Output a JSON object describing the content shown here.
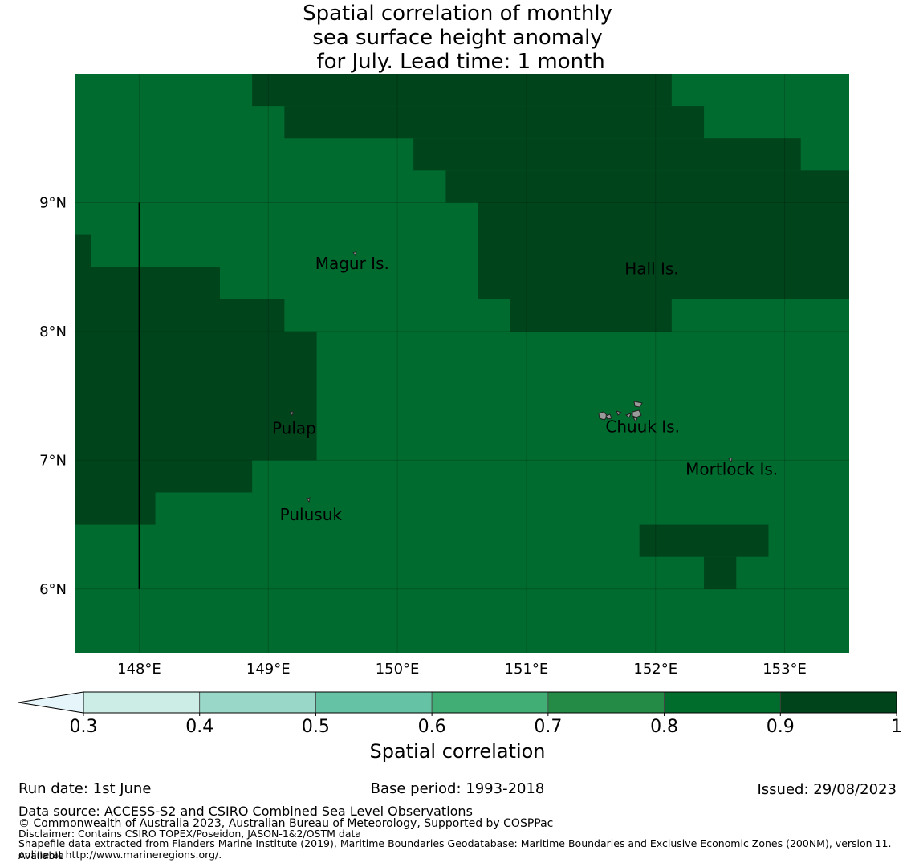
{
  "title_lines": [
    "Spatial correlation of monthly",
    "sea surface height anomaly",
    " for July. Lead time: 1 month"
  ],
  "map": {
    "lon_range": [
      147.5,
      153.5
    ],
    "lat_range": [
      5.5,
      10.0
    ],
    "x_ticks": [
      {
        "value": 148,
        "label": "148°E"
      },
      {
        "value": 149,
        "label": "149°E"
      },
      {
        "value": 150,
        "label": "150°E"
      },
      {
        "value": 151,
        "label": "151°E"
      },
      {
        "value": 152,
        "label": "152°E"
      },
      {
        "value": 153,
        "label": "153°E"
      }
    ],
    "y_ticks": [
      {
        "value": 9,
        "label": "9°N"
      },
      {
        "value": 8,
        "label": "8°N"
      },
      {
        "value": 7,
        "label": "7°N"
      },
      {
        "value": 6,
        "label": "6°N"
      }
    ],
    "base_color": "#006b2e",
    "dark_color": "#00441b",
    "dark_regions": [
      {
        "lon": [
          148.875,
          152.125
        ],
        "lat": [
          9.75,
          10.0
        ]
      },
      {
        "lon": [
          149.125,
          152.375
        ],
        "lat": [
          9.5,
          9.75
        ]
      },
      {
        "lon": [
          150.125,
          153.125
        ],
        "lat": [
          9.25,
          9.5
        ]
      },
      {
        "lon": [
          150.375,
          153.5
        ],
        "lat": [
          9.0,
          9.25
        ]
      },
      {
        "lon": [
          150.625,
          153.5
        ],
        "lat": [
          8.5,
          9.0
        ]
      },
      {
        "lon": [
          147.5,
          147.625
        ],
        "lat": [
          8.5,
          8.75
        ]
      },
      {
        "lon": [
          150.625,
          153.5
        ],
        "lat": [
          8.25,
          8.5
        ]
      },
      {
        "lon": [
          147.5,
          148.625
        ],
        "lat": [
          8.25,
          8.5
        ]
      },
      {
        "lon": [
          150.875,
          152.125
        ],
        "lat": [
          8.0,
          8.25
        ]
      },
      {
        "lon": [
          147.5,
          149.125
        ],
        "lat": [
          8.0,
          8.25
        ]
      },
      {
        "lon": [
          147.5,
          149.375
        ],
        "lat": [
          7.0,
          8.0
        ]
      },
      {
        "lon": [
          147.5,
          148.875
        ],
        "lat": [
          6.75,
          7.0
        ]
      },
      {
        "lon": [
          147.5,
          148.125
        ],
        "lat": [
          6.5,
          6.75
        ]
      },
      {
        "lon": [
          151.875,
          152.875
        ],
        "lat": [
          6.25,
          6.5
        ]
      },
      {
        "lon": [
          152.375,
          152.625
        ],
        "lat": [
          6.0,
          6.25
        ]
      }
    ],
    "meridian_line": {
      "lon": 148.0,
      "lat": [
        6.0,
        9.0
      ]
    },
    "places": [
      {
        "name": "Magur Is.",
        "lon": 149.65,
        "lat": 8.52,
        "marker_lon": 149.67,
        "marker_lat": 8.6
      },
      {
        "name": "Hall Is.",
        "lon": 151.97,
        "lat": 8.48
      },
      {
        "name": "Pulap",
        "lon": 149.2,
        "lat": 7.24,
        "marker_lon": 149.18,
        "marker_lat": 7.36
      },
      {
        "name": "Chuuk Is.",
        "lon": 151.9,
        "lat": 7.25
      },
      {
        "name": "Mortlock Is.",
        "lon": 152.59,
        "lat": 6.92,
        "marker_lon": 152.58,
        "marker_lat": 7.0
      },
      {
        "name": "Pulusuk",
        "lon": 149.33,
        "lat": 6.57,
        "marker_lon": 149.31,
        "marker_lat": 6.69
      }
    ]
  },
  "colorbar": {
    "title": "Spatial correlation",
    "extend_color": "#e5f5f9",
    "bins": [
      {
        "from": 0.3,
        "to": 0.4,
        "color": "#ccece6"
      },
      {
        "from": 0.4,
        "to": 0.5,
        "color": "#99d8c9"
      },
      {
        "from": 0.5,
        "to": 0.6,
        "color": "#66c2a4"
      },
      {
        "from": 0.6,
        "to": 0.7,
        "color": "#41ae76"
      },
      {
        "from": 0.7,
        "to": 0.8,
        "color": "#238b45"
      },
      {
        "from": 0.8,
        "to": 0.9,
        "color": "#006d2c"
      },
      {
        "from": 0.9,
        "to": 1.0,
        "color": "#00441b"
      }
    ],
    "tick_labels": [
      "0.3",
      "0.4",
      "0.5",
      "0.6",
      "0.7",
      "0.8",
      "0.9",
      "1"
    ]
  },
  "footer": {
    "run_date": "Run date: 1st June",
    "base_period": "Base period: 1993-2018",
    "issued": "Issued: 29/08/2023",
    "data_source": "Data source: ACCESS-S2 and CSIRO Combined Sea Level Observations",
    "copyright": "© Commonwealth of Australia 2023, Australian Bureau of Meteorology, Supported by COSPPac",
    "disclaimer": "Disclaimer: Contains CSIRO TOPEX/Poseidon, JASON-1&2/OSTM data",
    "shapefile_1": "Shapefile data extracted from Flanders Marine Institute (2019), Maritime Boundaries Geodatabase: Maritime Boundaries and Exclusive Economic Zones (200NM), version 11. Available",
    "shapefile_2": "online at http://www.marineregions.org/."
  }
}
